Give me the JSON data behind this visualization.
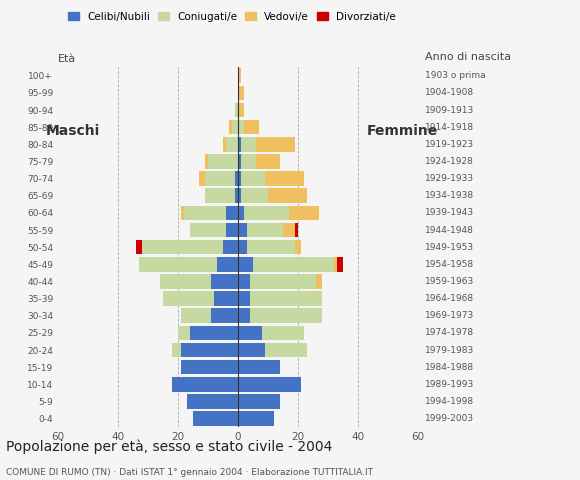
{
  "age_groups": [
    "0-4",
    "5-9",
    "10-14",
    "15-19",
    "20-24",
    "25-29",
    "30-34",
    "35-39",
    "40-44",
    "45-49",
    "50-54",
    "55-59",
    "60-64",
    "65-69",
    "70-74",
    "75-79",
    "80-84",
    "85-89",
    "90-94",
    "95-99",
    "100+"
  ],
  "birth_years": [
    "1999-2003",
    "1994-1998",
    "1989-1993",
    "1984-1988",
    "1979-1983",
    "1974-1978",
    "1969-1973",
    "1964-1968",
    "1959-1963",
    "1954-1958",
    "1949-1953",
    "1944-1948",
    "1939-1943",
    "1934-1938",
    "1929-1933",
    "1924-1928",
    "1919-1923",
    "1914-1918",
    "1909-1913",
    "1904-1908",
    "1903 o prima"
  ],
  "male_celibinubili": [
    15,
    17,
    22,
    19,
    19,
    16,
    9,
    8,
    9,
    7,
    5,
    4,
    4,
    1,
    1,
    0,
    0,
    0,
    0,
    0,
    0
  ],
  "male_coniugati": [
    0,
    0,
    0,
    0,
    3,
    4,
    10,
    17,
    17,
    26,
    27,
    12,
    14,
    10,
    10,
    10,
    4,
    2,
    1,
    0,
    0
  ],
  "male_vedovi": [
    0,
    0,
    0,
    0,
    0,
    0,
    0,
    0,
    0,
    0,
    0,
    0,
    1,
    0,
    2,
    1,
    1,
    1,
    0,
    0,
    0
  ],
  "male_divorziati": [
    0,
    0,
    0,
    0,
    0,
    0,
    0,
    0,
    0,
    0,
    2,
    0,
    0,
    0,
    0,
    0,
    0,
    0,
    0,
    0,
    0
  ],
  "female_celibinubili": [
    12,
    14,
    21,
    14,
    9,
    8,
    4,
    4,
    4,
    5,
    3,
    3,
    2,
    1,
    1,
    1,
    1,
    0,
    0,
    0,
    0
  ],
  "female_coniugati": [
    0,
    0,
    0,
    0,
    14,
    14,
    24,
    24,
    22,
    27,
    16,
    12,
    15,
    9,
    8,
    5,
    5,
    2,
    0,
    0,
    0
  ],
  "female_vedovi": [
    0,
    0,
    0,
    0,
    0,
    0,
    0,
    0,
    2,
    1,
    2,
    4,
    10,
    13,
    13,
    8,
    13,
    5,
    2,
    2,
    1
  ],
  "female_divorziati": [
    0,
    0,
    0,
    0,
    0,
    0,
    0,
    0,
    0,
    2,
    0,
    1,
    0,
    0,
    0,
    0,
    0,
    0,
    0,
    0,
    0
  ],
  "color_celibinubili": "#4472c4",
  "color_coniugati": "#c5d9a0",
  "color_vedovi": "#f0c060",
  "color_divorziati": "#cc0000",
  "title": "Popolazione per età, sesso e stato civile - 2004",
  "subtitle": "COMUNE DI RUMO (TN) · Dati ISTAT 1° gennaio 2004 · Elaborazione TUTTITALIA.IT",
  "label_maschi": "Maschi",
  "label_femmine": "Femmine",
  "label_eta": "Età",
  "label_anno": "Anno di nascita",
  "xlim": 60,
  "background_color": "#f5f5f5",
  "legend_labels": [
    "Celibi/Nubili",
    "Coniugati/e",
    "Vedovi/e",
    "Divorziati/e"
  ]
}
